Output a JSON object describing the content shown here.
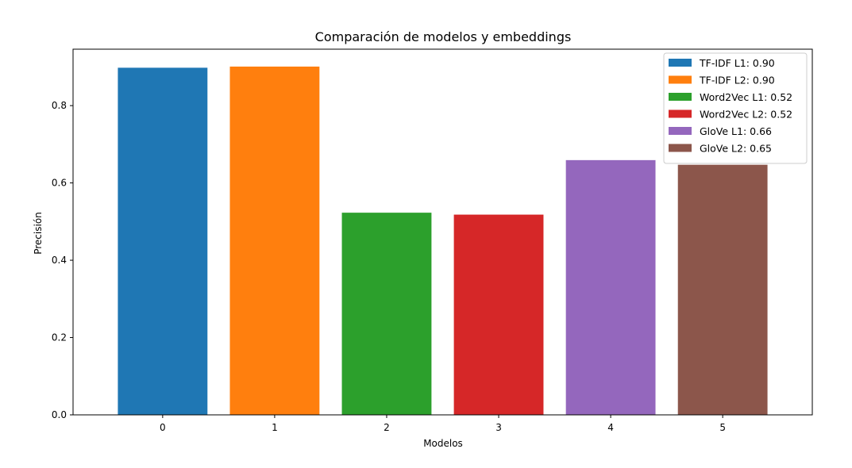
{
  "chart_data": {
    "type": "bar",
    "title": "Comparación de modelos y embeddings",
    "xlabel": "Modelos",
    "ylabel": "Precisión",
    "categories": [
      "0",
      "1",
      "2",
      "3",
      "4",
      "5"
    ],
    "values": [
      0.898,
      0.901,
      0.523,
      0.518,
      0.659,
      0.647
    ],
    "colors": [
      "#1f77b4",
      "#ff7f0e",
      "#2ca02c",
      "#d62728",
      "#9467bd",
      "#8c564b"
    ],
    "legend": [
      "TF-IDF L1: 0.90",
      "TF-IDF L2: 0.90",
      "Word2Vec L1: 0.52",
      "Word2Vec L2: 0.52",
      "GloVe L1: 0.66",
      "GloVe L2: 0.65"
    ],
    "legend_position": "top-right",
    "ylim": [
      0,
      0.946
    ],
    "yticks": [
      "0.0",
      "0.2",
      "0.4",
      "0.6",
      "0.8"
    ],
    "grid": false
  }
}
